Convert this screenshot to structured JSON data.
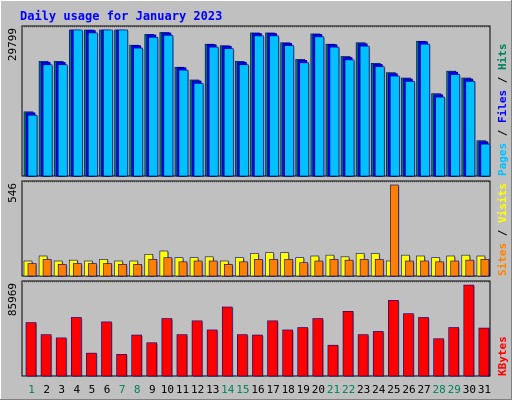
{
  "chart_data": [
    {
      "type": "bar",
      "title": "Daily usage for January 2023",
      "panel": "hits-files-pages",
      "categories": [
        "1",
        "2",
        "3",
        "4",
        "5",
        "6",
        "7",
        "8",
        "9",
        "10",
        "11",
        "12",
        "13",
        "14",
        "15",
        "16",
        "17",
        "18",
        "19",
        "20",
        "21",
        "22",
        "23",
        "24",
        "25",
        "26",
        "27",
        "28",
        "29",
        "30",
        "31"
      ],
      "weekend_days": [
        "1",
        "7",
        "8",
        "14",
        "15",
        "21",
        "22",
        "28",
        "29"
      ],
      "ymax_label": "29799",
      "ylim": [
        0,
        29799
      ],
      "ylabel_parts": [
        {
          "text": "Pages",
          "color": "#00c0ff"
        },
        {
          "text": " / ",
          "color": "#000000"
        },
        {
          "text": "Files",
          "color": "#0000ff"
        },
        {
          "text": " / ",
          "color": "#000000"
        },
        {
          "text": "Hits",
          "color": "#00805c"
        }
      ],
      "series": [
        {
          "name": "Hits",
          "color": "#00805c",
          "values": [
            13100,
            23400,
            23400,
            30400,
            29800,
            30500,
            30400,
            26700,
            28900,
            29300,
            22200,
            19600,
            26900,
            26600,
            23400,
            29200,
            29200,
            27200,
            23800,
            29000,
            26900,
            24400,
            27200,
            23000,
            21100,
            20000,
            27500,
            16800,
            21400,
            20000,
            7200
          ]
        },
        {
          "name": "Files",
          "color": "#0000ff",
          "values": [
            12900,
            23200,
            23200,
            30300,
            29700,
            30400,
            30300,
            26600,
            28800,
            29200,
            22100,
            19400,
            26800,
            26500,
            23200,
            29100,
            29100,
            27100,
            23600,
            28900,
            26800,
            24200,
            27000,
            22800,
            20900,
            19800,
            27400,
            16600,
            21200,
            19800,
            7000
          ]
        },
        {
          "name": "Pages",
          "color": "#00c0ff",
          "values": [
            12400,
            22700,
            22700,
            29800,
            29200,
            29900,
            29800,
            26100,
            28300,
            28700,
            21600,
            18900,
            26300,
            26000,
            22700,
            28600,
            28600,
            26600,
            23100,
            28400,
            26300,
            23700,
            26500,
            22300,
            20400,
            19300,
            26900,
            16100,
            20700,
            19300,
            6500
          ]
        }
      ]
    },
    {
      "type": "bar",
      "panel": "visits-sites",
      "categories": [
        "1",
        "2",
        "3",
        "4",
        "5",
        "6",
        "7",
        "8",
        "9",
        "10",
        "11",
        "12",
        "13",
        "14",
        "15",
        "16",
        "17",
        "18",
        "19",
        "20",
        "21",
        "22",
        "23",
        "24",
        "25",
        "26",
        "27",
        "28",
        "29",
        "30",
        "31"
      ],
      "ymax_label": "546",
      "ylim": [
        0,
        546
      ],
      "ylabel_parts": [
        {
          "text": "Sites",
          "color": "#ff8000"
        },
        {
          "text": " / ",
          "color": "#000000"
        },
        {
          "text": "Visits",
          "color": "#ffff00"
        }
      ],
      "series": [
        {
          "name": "Visits",
          "color": "#ffff00",
          "values": [
            90,
            120,
            90,
            95,
            90,
            100,
            90,
            90,
            130,
            150,
            110,
            110,
            115,
            90,
            110,
            135,
            140,
            140,
            110,
            120,
            125,
            115,
            135,
            135,
            90,
            125,
            120,
            110,
            120,
            125,
            120
          ]
        },
        {
          "name": "Sites",
          "color": "#ff8000",
          "values": [
            75,
            100,
            70,
            75,
            75,
            75,
            70,
            70,
            100,
            110,
            85,
            90,
            90,
            70,
            85,
            100,
            100,
            100,
            80,
            90,
            100,
            95,
            100,
            100,
            546,
            90,
            90,
            85,
            90,
            95,
            100
          ]
        }
      ]
    },
    {
      "type": "bar",
      "panel": "kbytes",
      "categories": [
        "1",
        "2",
        "3",
        "4",
        "5",
        "6",
        "7",
        "8",
        "9",
        "10",
        "11",
        "12",
        "13",
        "14",
        "15",
        "16",
        "17",
        "18",
        "19",
        "20",
        "21",
        "22",
        "23",
        "24",
        "25",
        "26",
        "27",
        "28",
        "29",
        "30",
        "31"
      ],
      "ymax_label": "85969",
      "ylim": [
        0,
        85969
      ],
      "ylabel_parts": [
        {
          "text": "KBytes",
          "color": "#ff0000"
        }
      ],
      "series": [
        {
          "name": "KBytes",
          "color": "#ff0000",
          "values": [
            50500,
            39100,
            36000,
            55300,
            21600,
            51100,
            20500,
            38700,
            31400,
            54300,
            39100,
            52100,
            43500,
            65200,
            39100,
            38700,
            52100,
            43500,
            45800,
            54300,
            29100,
            61100,
            39100,
            42100,
            71500,
            58900,
            55300,
            35200,
            45800,
            85900,
            45300
          ]
        }
      ]
    }
  ]
}
